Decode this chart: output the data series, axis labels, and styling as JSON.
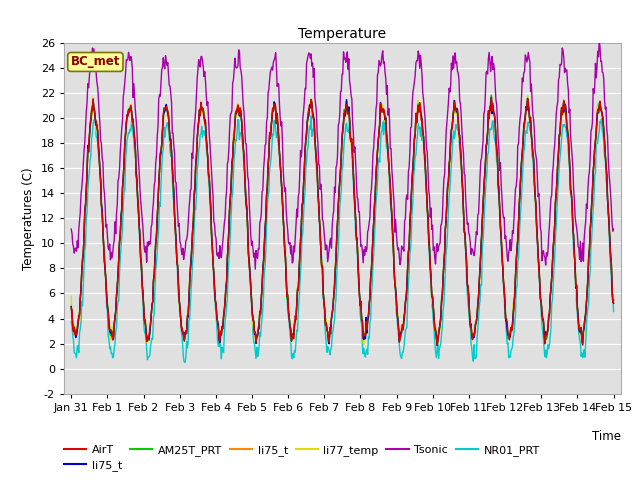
{
  "title": "Temperature",
  "xlabel": "Time",
  "ylabel": "Temperatures (C)",
  "ylim": [
    -2,
    26
  ],
  "yticks": [
    -2,
    0,
    2,
    4,
    6,
    8,
    10,
    12,
    14,
    16,
    18,
    20,
    22,
    24,
    26
  ],
  "xtick_labels": [
    "Jan 31",
    "Feb 1",
    "Feb 2",
    "Feb 3",
    "Feb 4",
    "Feb 5",
    "Feb 6",
    "Feb 7",
    "Feb 8",
    "Feb 9",
    "Feb 10",
    "Feb 11",
    "Feb 12",
    "Feb 13",
    "Feb 14",
    "Feb 15"
  ],
  "series_colors": {
    "AirT": "#dd0000",
    "li75_t_blue": "#0000cc",
    "AM25T_PRT": "#00cc00",
    "li75_t_orange": "#ff8800",
    "li77_temp": "#dddd00",
    "Tsonic": "#aa00aa",
    "NR01_PRT": "#00cccc"
  },
  "bc_met_label": "BC_met",
  "bc_met_bg": "#ffff99",
  "bc_met_fg": "#880000",
  "plot_bg": "#e0e0e0",
  "n_points": 720
}
